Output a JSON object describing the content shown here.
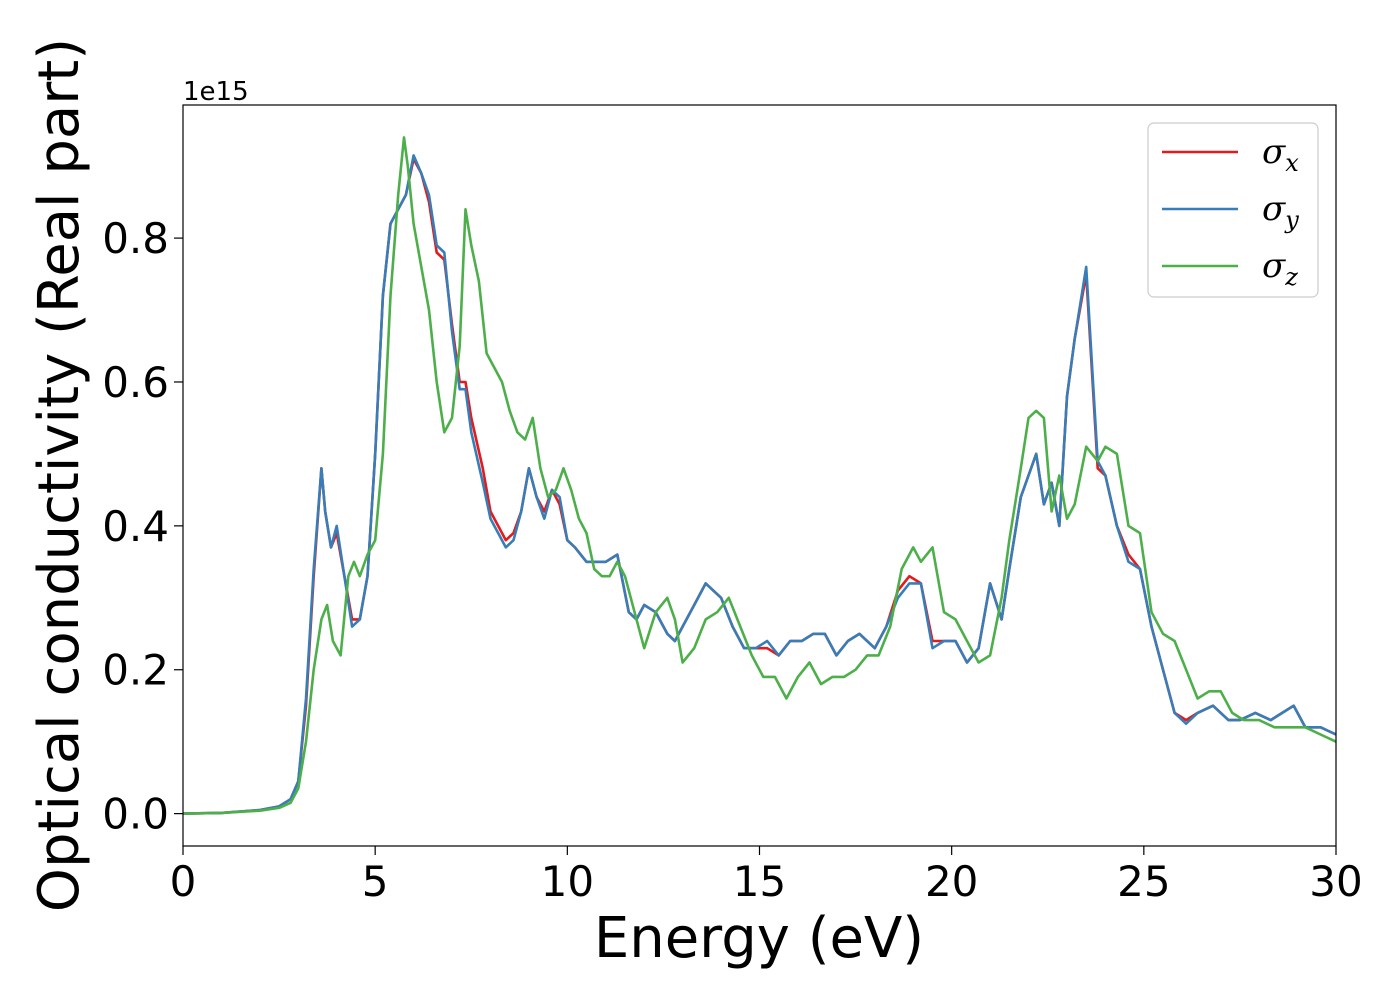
{
  "chart_data": {
    "type": "line",
    "title": "",
    "xlabel": "Energy (eV)",
    "ylabel": "Optical conductivity (Real part)",
    "y_offset_label": "1e15",
    "xlim": [
      0,
      30
    ],
    "ylim": [
      -0.045,
      0.985
    ],
    "x_ticks": [
      0,
      5,
      10,
      15,
      20,
      25,
      30
    ],
    "x_tick_labels": [
      "0",
      "5",
      "10",
      "15",
      "20",
      "25",
      "30"
    ],
    "y_ticks": [
      0.0,
      0.2,
      0.4,
      0.6,
      0.8
    ],
    "y_tick_labels": [
      "0.0",
      "0.2",
      "0.4",
      "0.6",
      "0.8"
    ],
    "grid": false,
    "legend_position": "top-right",
    "series": [
      {
        "name": "σx",
        "symbol": "σ",
        "subscript": "x",
        "color": "#e41a1c",
        "x": [
          0,
          1,
          2,
          2.5,
          2.8,
          3.0,
          3.2,
          3.4,
          3.6,
          3.7,
          3.85,
          4.0,
          4.2,
          4.4,
          4.6,
          4.8,
          5.0,
          5.2,
          5.4,
          5.6,
          5.8,
          6.0,
          6.2,
          6.4,
          6.6,
          6.8,
          7.0,
          7.2,
          7.35,
          7.5,
          7.8,
          8.0,
          8.2,
          8.4,
          8.6,
          8.8,
          9.0,
          9.2,
          9.4,
          9.6,
          9.8,
          10.0,
          10.2,
          10.5,
          10.8,
          11.0,
          11.3,
          11.6,
          11.8,
          12.0,
          12.3,
          12.6,
          12.8,
          13.0,
          13.3,
          13.6,
          14.0,
          14.3,
          14.6,
          14.9,
          15.2,
          15.5,
          15.8,
          16.1,
          16.4,
          16.7,
          17.0,
          17.3,
          17.6,
          18.0,
          18.3,
          18.6,
          18.9,
          19.2,
          19.5,
          19.8,
          20.1,
          20.4,
          20.7,
          21.0,
          21.3,
          21.5,
          21.8,
          22.0,
          22.2,
          22.4,
          22.6,
          22.8,
          23.0,
          23.2,
          23.5,
          23.8,
          24.0,
          24.3,
          24.6,
          24.9,
          25.2,
          25.5,
          25.8,
          26.1,
          26.4,
          26.8,
          27.2,
          27.5,
          27.9,
          28.3,
          28.6,
          28.9,
          29.2,
          29.6,
          30.0
        ],
        "y": [
          0.0,
          0.001,
          0.005,
          0.01,
          0.02,
          0.045,
          0.15,
          0.33,
          0.48,
          0.42,
          0.37,
          0.39,
          0.33,
          0.27,
          0.27,
          0.33,
          0.5,
          0.72,
          0.82,
          0.84,
          0.86,
          0.91,
          0.89,
          0.85,
          0.78,
          0.77,
          0.68,
          0.6,
          0.6,
          0.55,
          0.48,
          0.42,
          0.4,
          0.38,
          0.39,
          0.42,
          0.48,
          0.44,
          0.42,
          0.45,
          0.43,
          0.38,
          0.37,
          0.35,
          0.35,
          0.35,
          0.36,
          0.28,
          0.27,
          0.29,
          0.28,
          0.25,
          0.24,
          0.26,
          0.29,
          0.32,
          0.3,
          0.26,
          0.23,
          0.23,
          0.23,
          0.22,
          0.24,
          0.24,
          0.25,
          0.25,
          0.22,
          0.24,
          0.25,
          0.23,
          0.26,
          0.31,
          0.33,
          0.32,
          0.24,
          0.24,
          0.24,
          0.21,
          0.23,
          0.32,
          0.27,
          0.34,
          0.44,
          0.47,
          0.5,
          0.43,
          0.46,
          0.4,
          0.58,
          0.66,
          0.75,
          0.48,
          0.47,
          0.4,
          0.36,
          0.34,
          0.26,
          0.2,
          0.14,
          0.13,
          0.14,
          0.15,
          0.13,
          0.13,
          0.14,
          0.13,
          0.14,
          0.15,
          0.12,
          0.12,
          0.11
        ]
      },
      {
        "name": "σy",
        "symbol": "σ",
        "subscript": "y",
        "color": "#377eb8",
        "x": [
          0,
          1,
          2,
          2.5,
          2.8,
          3.0,
          3.2,
          3.4,
          3.6,
          3.7,
          3.85,
          4.0,
          4.2,
          4.4,
          4.6,
          4.8,
          5.0,
          5.2,
          5.4,
          5.6,
          5.8,
          6.0,
          6.2,
          6.4,
          6.6,
          6.8,
          7.0,
          7.2,
          7.35,
          7.5,
          7.8,
          8.0,
          8.2,
          8.4,
          8.6,
          8.8,
          9.0,
          9.2,
          9.4,
          9.6,
          9.8,
          10.0,
          10.2,
          10.5,
          10.8,
          11.0,
          11.3,
          11.6,
          11.8,
          12.0,
          12.3,
          12.6,
          12.8,
          13.0,
          13.3,
          13.6,
          14.0,
          14.3,
          14.6,
          14.9,
          15.2,
          15.5,
          15.8,
          16.1,
          16.4,
          16.7,
          17.0,
          17.3,
          17.6,
          18.0,
          18.3,
          18.6,
          18.9,
          19.2,
          19.5,
          19.8,
          20.1,
          20.4,
          20.7,
          21.0,
          21.3,
          21.5,
          21.8,
          22.0,
          22.2,
          22.4,
          22.6,
          22.8,
          23.0,
          23.2,
          23.5,
          23.8,
          24.0,
          24.3,
          24.6,
          24.9,
          25.2,
          25.5,
          25.8,
          26.1,
          26.4,
          26.8,
          27.2,
          27.5,
          27.9,
          28.3,
          28.6,
          28.9,
          29.2,
          29.6,
          30.0
        ],
        "y": [
          0.0,
          0.001,
          0.005,
          0.01,
          0.02,
          0.045,
          0.16,
          0.34,
          0.48,
          0.42,
          0.37,
          0.4,
          0.33,
          0.26,
          0.27,
          0.33,
          0.5,
          0.72,
          0.82,
          0.84,
          0.86,
          0.915,
          0.89,
          0.86,
          0.79,
          0.78,
          0.67,
          0.59,
          0.59,
          0.53,
          0.46,
          0.41,
          0.39,
          0.37,
          0.38,
          0.42,
          0.48,
          0.44,
          0.41,
          0.45,
          0.44,
          0.38,
          0.37,
          0.35,
          0.35,
          0.35,
          0.36,
          0.28,
          0.27,
          0.29,
          0.28,
          0.25,
          0.24,
          0.26,
          0.29,
          0.32,
          0.3,
          0.26,
          0.23,
          0.23,
          0.24,
          0.22,
          0.24,
          0.24,
          0.25,
          0.25,
          0.22,
          0.24,
          0.25,
          0.23,
          0.26,
          0.3,
          0.32,
          0.32,
          0.23,
          0.24,
          0.24,
          0.21,
          0.23,
          0.32,
          0.27,
          0.34,
          0.44,
          0.47,
          0.5,
          0.43,
          0.46,
          0.4,
          0.58,
          0.66,
          0.76,
          0.49,
          0.47,
          0.4,
          0.35,
          0.34,
          0.26,
          0.2,
          0.14,
          0.125,
          0.14,
          0.15,
          0.13,
          0.13,
          0.14,
          0.13,
          0.14,
          0.15,
          0.12,
          0.12,
          0.11
        ]
      },
      {
        "name": "σz",
        "symbol": "σ",
        "subscript": "z",
        "color": "#4daf4a",
        "x": [
          0,
          1,
          2,
          2.5,
          2.8,
          3.0,
          3.2,
          3.4,
          3.6,
          3.75,
          3.9,
          4.1,
          4.3,
          4.45,
          4.6,
          4.8,
          5.0,
          5.2,
          5.4,
          5.6,
          5.75,
          5.85,
          6.0,
          6.2,
          6.4,
          6.6,
          6.8,
          7.0,
          7.2,
          7.35,
          7.5,
          7.7,
          7.9,
          8.1,
          8.3,
          8.5,
          8.7,
          8.9,
          9.1,
          9.3,
          9.5,
          9.7,
          9.9,
          10.1,
          10.3,
          10.5,
          10.7,
          10.9,
          11.1,
          11.3,
          11.5,
          11.8,
          12.0,
          12.3,
          12.6,
          12.8,
          13.0,
          13.3,
          13.6,
          13.9,
          14.2,
          14.5,
          14.8,
          15.1,
          15.4,
          15.7,
          16.0,
          16.3,
          16.6,
          16.9,
          17.2,
          17.5,
          17.8,
          18.1,
          18.4,
          18.7,
          19.0,
          19.2,
          19.5,
          19.8,
          20.1,
          20.4,
          20.7,
          21.0,
          21.3,
          21.5,
          21.8,
          22.0,
          22.2,
          22.4,
          22.6,
          22.8,
          23.0,
          23.2,
          23.5,
          23.8,
          24.0,
          24.3,
          24.6,
          24.9,
          25.2,
          25.5,
          25.8,
          26.1,
          26.4,
          26.7,
          27.0,
          27.3,
          27.6,
          28.0,
          28.4,
          28.8,
          29.2,
          29.6,
          30.0
        ],
        "y": [
          0.0,
          0.001,
          0.004,
          0.008,
          0.015,
          0.035,
          0.1,
          0.2,
          0.27,
          0.29,
          0.24,
          0.22,
          0.33,
          0.35,
          0.33,
          0.36,
          0.38,
          0.5,
          0.72,
          0.86,
          0.94,
          0.9,
          0.82,
          0.76,
          0.7,
          0.6,
          0.53,
          0.55,
          0.65,
          0.84,
          0.79,
          0.74,
          0.64,
          0.62,
          0.6,
          0.56,
          0.53,
          0.52,
          0.55,
          0.48,
          0.44,
          0.45,
          0.48,
          0.45,
          0.41,
          0.39,
          0.34,
          0.33,
          0.33,
          0.35,
          0.33,
          0.27,
          0.23,
          0.28,
          0.3,
          0.27,
          0.21,
          0.23,
          0.27,
          0.28,
          0.3,
          0.26,
          0.22,
          0.19,
          0.19,
          0.16,
          0.19,
          0.21,
          0.18,
          0.19,
          0.19,
          0.2,
          0.22,
          0.22,
          0.26,
          0.34,
          0.37,
          0.35,
          0.37,
          0.28,
          0.27,
          0.24,
          0.21,
          0.22,
          0.3,
          0.38,
          0.48,
          0.55,
          0.56,
          0.55,
          0.42,
          0.47,
          0.41,
          0.43,
          0.51,
          0.49,
          0.51,
          0.5,
          0.4,
          0.39,
          0.28,
          0.25,
          0.24,
          0.2,
          0.16,
          0.17,
          0.17,
          0.14,
          0.13,
          0.13,
          0.12,
          0.12,
          0.12,
          0.11,
          0.1
        ]
      }
    ]
  }
}
